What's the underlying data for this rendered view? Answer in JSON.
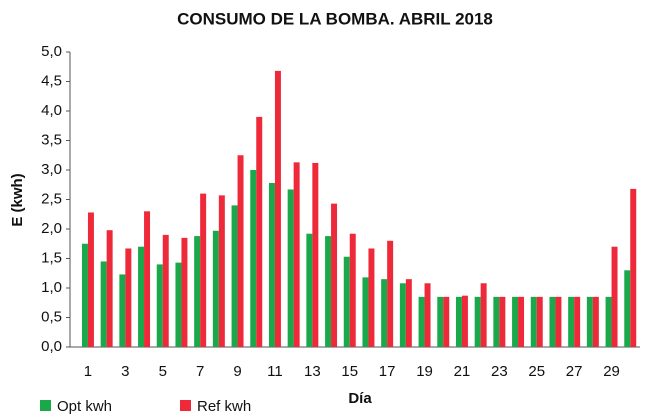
{
  "chart_data": {
    "type": "bar",
    "title": "CONSUMO DE LA BOMBA. ABRIL 2018",
    "xlabel": "Día",
    "ylabel": "E (kwh)",
    "categories": [
      "1",
      null,
      "3",
      null,
      "5",
      null,
      "7",
      null,
      "9",
      null,
      "11",
      null,
      "13",
      null,
      "15",
      null,
      "17",
      null,
      "19",
      null,
      "21",
      null,
      "23",
      null,
      "25",
      null,
      "27",
      null,
      "29",
      null
    ],
    "series": [
      {
        "name": "Opt kwh",
        "color": "#1ba84b",
        "values": [
          1.75,
          1.45,
          1.23,
          1.7,
          1.4,
          1.43,
          1.88,
          1.97,
          2.4,
          3.0,
          2.78,
          2.67,
          1.92,
          1.88,
          1.53,
          1.18,
          1.15,
          1.08,
          0.85,
          0.85,
          0.85,
          0.85,
          0.85,
          0.85,
          0.85,
          0.85,
          0.85,
          0.85,
          0.85,
          1.3
        ]
      },
      {
        "name": "Ref kwh",
        "color": "#ee2a3a",
        "values": [
          2.28,
          1.98,
          1.67,
          2.3,
          1.9,
          1.85,
          2.6,
          2.57,
          3.25,
          3.9,
          4.68,
          3.13,
          3.12,
          2.43,
          1.92,
          1.67,
          1.8,
          1.15,
          1.08,
          0.85,
          0.87,
          1.08,
          0.85,
          0.85,
          0.85,
          0.85,
          0.85,
          0.85,
          1.7,
          2.68
        ]
      }
    ],
    "ylim": [
      0,
      5
    ],
    "yticks": [
      {
        "value": 0,
        "label": "0,0"
      },
      {
        "value": 0.5,
        "label": "0,5"
      },
      {
        "value": 1,
        "label": "1,0"
      },
      {
        "value": 1.5,
        "label": "1,5"
      },
      {
        "value": 2,
        "label": "2,0"
      },
      {
        "value": 2.5,
        "label": "2,5"
      },
      {
        "value": 3,
        "label": "3,0"
      },
      {
        "value": 3.5,
        "label": "3,5"
      },
      {
        "value": 4,
        "label": "4,0"
      },
      {
        "value": 4.5,
        "label": "4,5"
      },
      {
        "value": 5,
        "label": "5,0"
      }
    ],
    "grid": false,
    "legend": "bottom-left"
  }
}
